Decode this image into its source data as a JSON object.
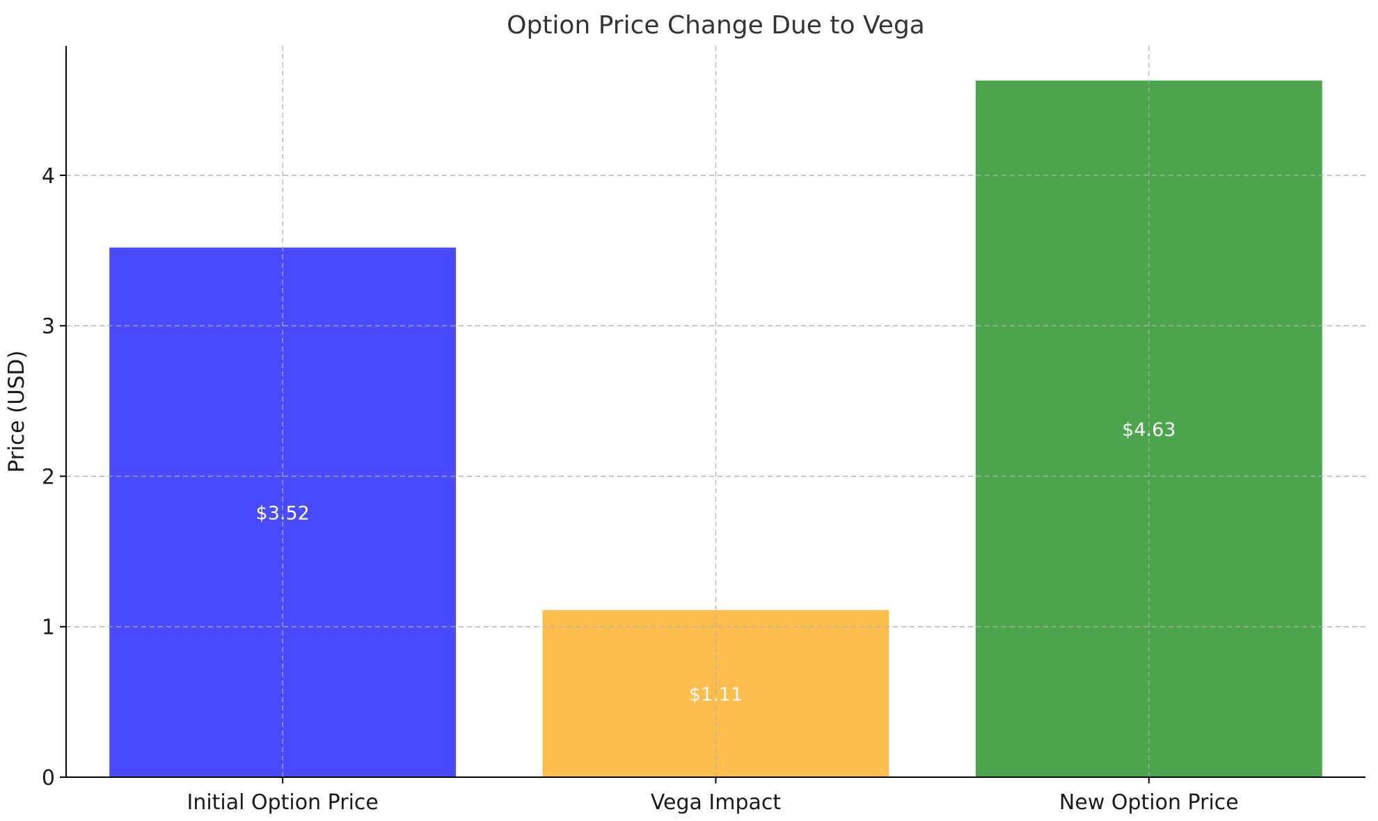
{
  "chart_data": {
    "type": "bar",
    "title": "Option Price Change Due to Vega",
    "xlabel": "",
    "ylabel": "Price (USD)",
    "categories": [
      "Initial Option Price",
      "Vega Impact",
      "New Option Price"
    ],
    "values": [
      3.52,
      1.11,
      4.63
    ],
    "value_labels": [
      "$3.52",
      "$1.11",
      "$4.63"
    ],
    "colors": [
      "#4a4aff",
      "#fdbd4d",
      "#4ca44c"
    ],
    "ylim": [
      0,
      4.86
    ],
    "yticks": [
      0,
      1,
      2,
      3,
      4
    ],
    "grid": true,
    "legend": "none"
  }
}
